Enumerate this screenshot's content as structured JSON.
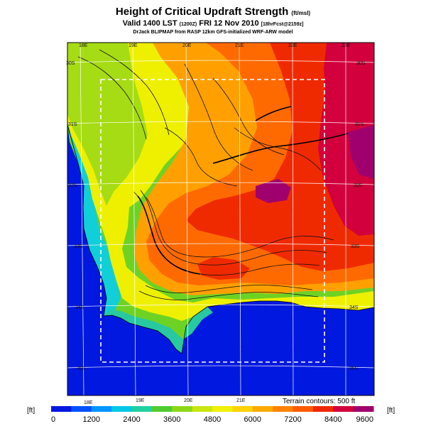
{
  "header": {
    "title": "Height of Critical Updraft Strength",
    "title_unit": "(ft/msl)",
    "valid": "Valid 1400 LST",
    "valid_code": "(1200Z)",
    "valid_date": "FRI 12 Nov 2010",
    "forecast": "[18hrFcst@2159z]",
    "credit": "DrJack BLIPMAP from RASP 12km GFS-initialized WRF-ARW model"
  },
  "map": {
    "lon_labels": [
      "18E",
      "19E",
      "20E",
      "21E",
      "22E",
      "23E"
    ],
    "lat_labels": [
      "30S",
      "31S",
      "32S",
      "33S",
      "34S",
      "35S"
    ],
    "terrain_note": "Terrain contours: 500 ft"
  },
  "colorbar": {
    "unit_left": "[ft]",
    "unit_right": "[ft]",
    "ticks": [
      "0",
      "1200",
      "2400",
      "3600",
      "4800",
      "6000",
      "7200",
      "8400",
      "9600"
    ],
    "colors": [
      "#0018e0",
      "#0050ff",
      "#0096ff",
      "#00c8e6",
      "#20d0a0",
      "#50cc30",
      "#8cd818",
      "#c8e610",
      "#f0f000",
      "#ffd200",
      "#ffaa00",
      "#ff8200",
      "#ff5a00",
      "#f02800",
      "#d2003c",
      "#a0006e"
    ]
  },
  "icons": {
    "ocean": "ocean-fill",
    "border": "dashed-domain-border"
  }
}
